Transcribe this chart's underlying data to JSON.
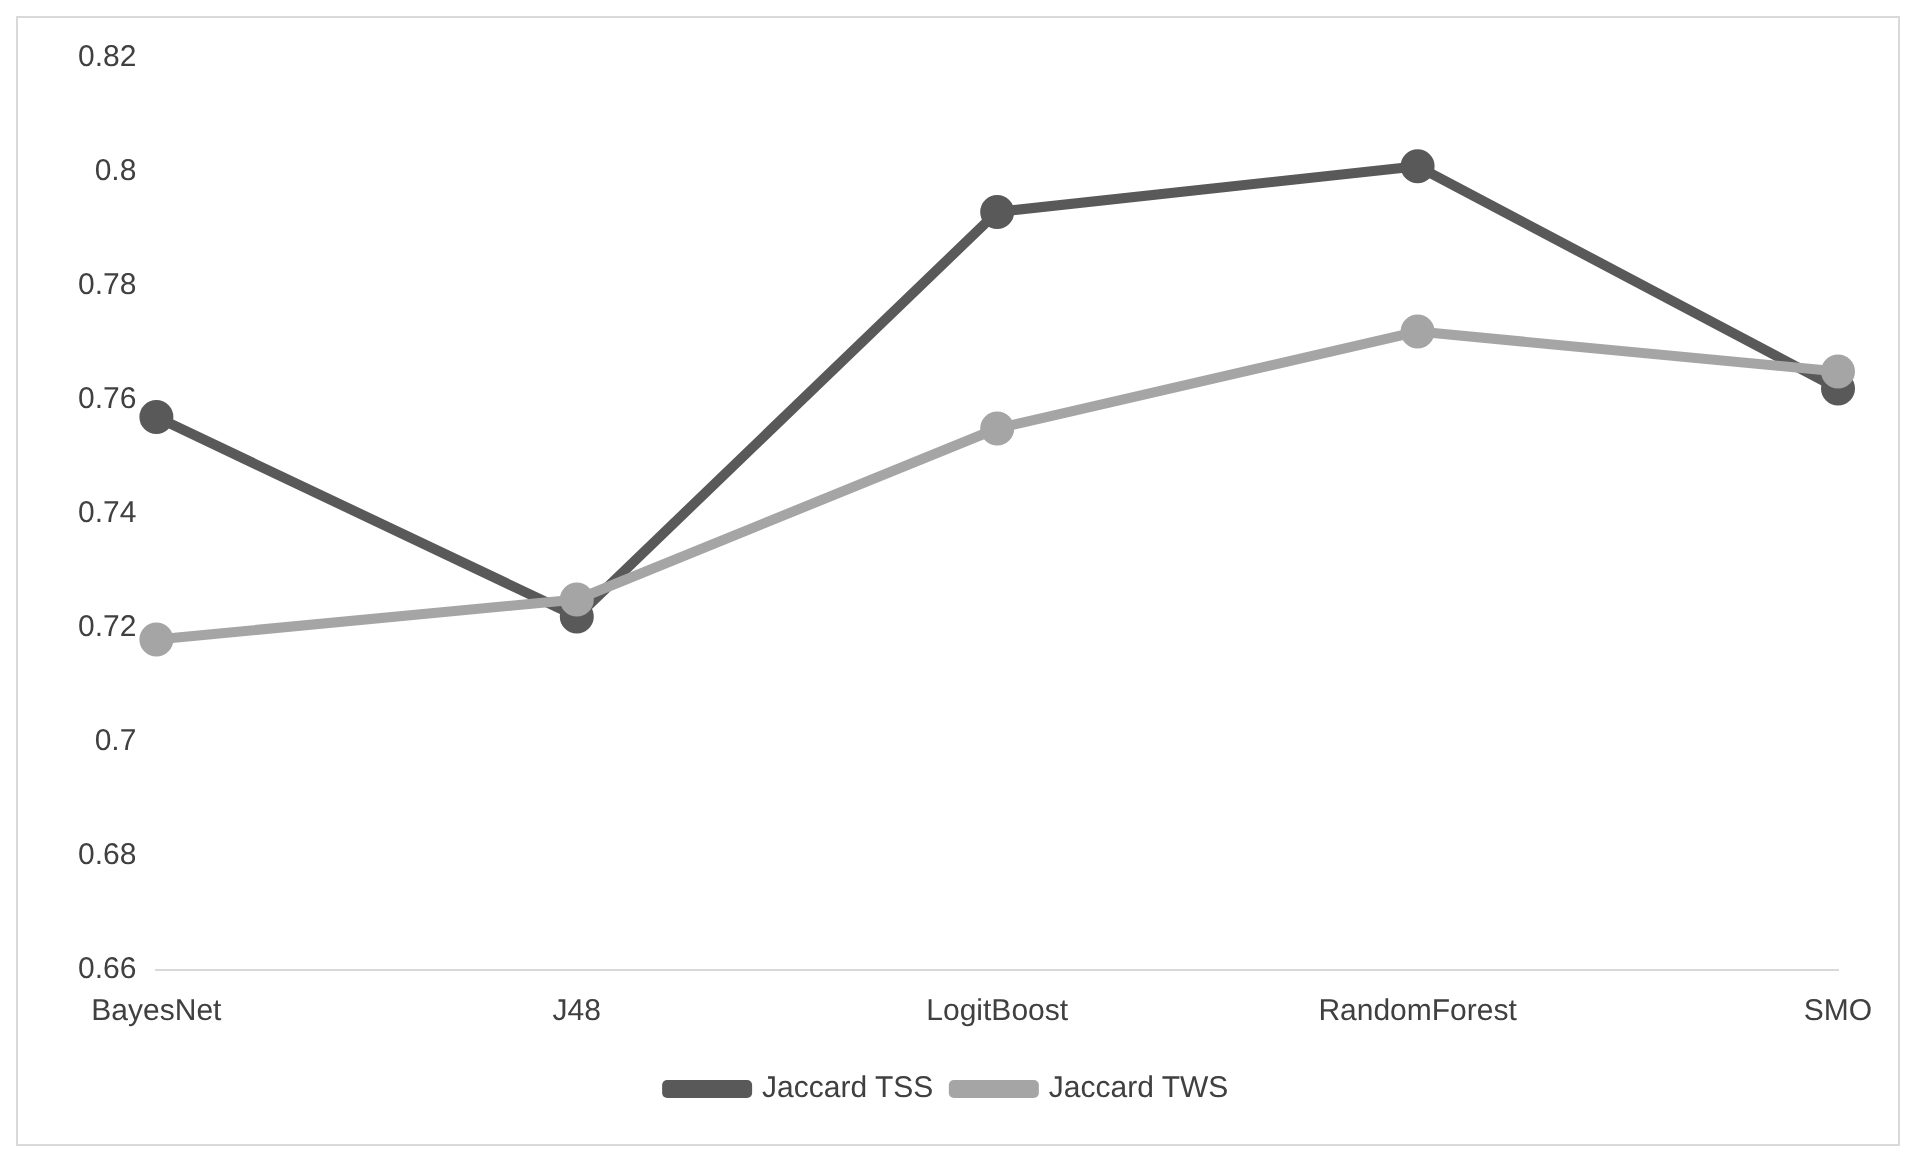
{
  "chart_data": {
    "type": "line",
    "categories": [
      "BayesNet",
      "J48",
      "LogitBoost",
      "RandomForest",
      "SMO"
    ],
    "series": [
      {
        "name": "Jaccard TSS",
        "color": "#595959",
        "values": [
          0.757,
          0.722,
          0.793,
          0.801,
          0.762
        ]
      },
      {
        "name": "Jaccard TWS",
        "color": "#a5a5a5",
        "values": [
          0.718,
          0.725,
          0.755,
          0.772,
          0.765
        ]
      }
    ],
    "ylim": [
      0.66,
      0.82
    ],
    "yticks": [
      0.66,
      0.68,
      0.7,
      0.72,
      0.74,
      0.76,
      0.78,
      0.8,
      0.82
    ],
    "grid": false,
    "legend": "bottom",
    "marker": "circle",
    "line_style": "solid"
  }
}
